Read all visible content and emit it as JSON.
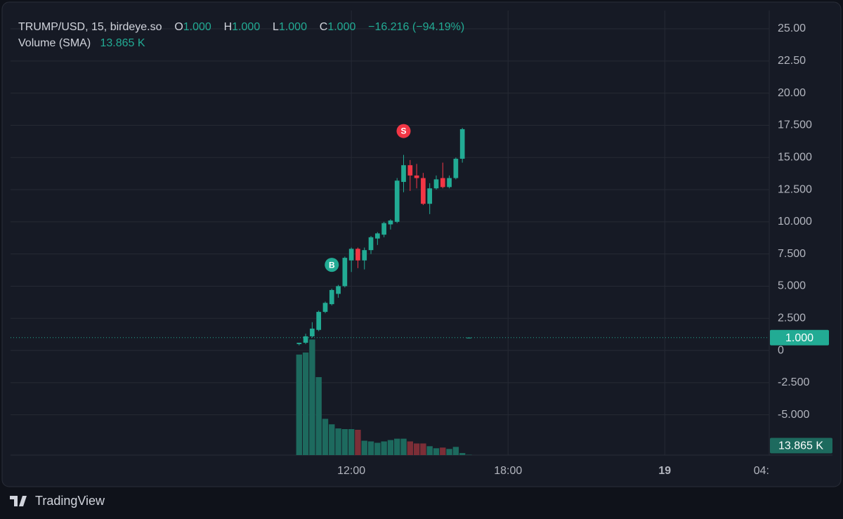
{
  "brand": "TradingView",
  "chart_data": {
    "type": "candlestick",
    "title": "TRUMP/USD, 15, birdeye.so",
    "ohlc": [
      {
        "name": "O",
        "value": {
          "value": 1,
          "label": "1.000"
        }
      },
      {
        "name": "H",
        "value": {
          "value": 1,
          "label": "1.000"
        }
      },
      {
        "name": "L",
        "value": {
          "value": 1,
          "label": "1.000"
        }
      },
      {
        "name": "C",
        "value": {
          "value": 1,
          "label": "1.000"
        }
      }
    ],
    "change": "−16.216 (−94.19%)",
    "x": [
      0,
      1,
      2,
      3,
      4,
      5,
      6,
      7,
      8,
      9,
      10,
      11,
      12,
      13,
      14,
      15,
      16,
      17,
      18,
      19,
      20,
      21,
      22,
      23,
      24,
      25,
      26
    ],
    "open": [
      0.5,
      0.6,
      1.1,
      1.6,
      3.0,
      3.6,
      4.4,
      5.0,
      7.0,
      7.9,
      7.0,
      7.8,
      8.7,
      9.0,
      9.8,
      10.0,
      13.1,
      14.4,
      13.6,
      13.4,
      11.4,
      12.6,
      13.4,
      12.7,
      13.4,
      14.9,
      1.0
    ],
    "high": [
      0.6,
      1.3,
      2.2,
      3.1,
      3.8,
      4.8,
      5.1,
      7.3,
      8.0,
      8.0,
      8.0,
      8.9,
      9.2,
      10.0,
      10.2,
      13.4,
      15.2,
      14.8,
      14.5,
      13.8,
      13.0,
      13.6,
      14.6,
      13.6,
      15.0,
      17.3,
      1.0
    ],
    "low": [
      0.4,
      0.5,
      1.0,
      1.5,
      2.9,
      3.5,
      4.1,
      4.9,
      6.1,
      6.4,
      6.3,
      7.5,
      8.2,
      8.8,
      9.4,
      9.9,
      12.3,
      12.4,
      12.6,
      11.3,
      10.6,
      12.5,
      12.6,
      12.6,
      13.3,
      14.6,
      1.0
    ],
    "close": [
      0.6,
      1.1,
      1.7,
      3.0,
      3.7,
      4.7,
      5.0,
      7.2,
      7.9,
      7.0,
      7.8,
      8.8,
      9.1,
      9.9,
      10.1,
      13.2,
      14.4,
      13.6,
      13.4,
      11.4,
      12.6,
      13.3,
      12.7,
      13.4,
      14.9,
      17.2,
      1.0
    ],
    "color_up": "#22ab94",
    "color_down": "#f23645",
    "volume": {
      "name": "Volume (SMA)",
      "axis": "y2",
      "values": [
        147,
        150,
        169,
        114,
        53,
        45,
        39,
        38,
        38,
        37,
        21,
        20,
        18,
        20,
        22,
        24,
        24,
        20,
        17,
        17,
        13,
        10,
        11,
        9,
        12,
        3,
        0.5
      ],
      "color_up": "#1d6a5e",
      "color_down": "#7c2e37"
    },
    "markers": [
      {
        "label": "B",
        "x": 5,
        "color": "#22ab94"
      },
      {
        "label": "S",
        "x": 16,
        "color": "#f23645"
      }
    ],
    "last_price": {
      "value": 1,
      "label": "1.000"
    },
    "last_volume": {
      "value": 13.865,
      "label": "13.865 K"
    },
    "xlim": [
      -44.2,
      72
    ],
    "xticks": [
      {
        "value": 8,
        "label": "12:00"
      },
      {
        "value": 32,
        "label": "18:00"
      },
      {
        "value": 56,
        "label": "19"
      },
      {
        "value": 72,
        "label": "04:"
      }
    ],
    "ylim": [
      -8.13,
      26.42
    ],
    "yticks": [
      {
        "value": 25,
        "label": "25.00"
      },
      {
        "value": 22.5,
        "label": "22.50"
      },
      {
        "value": 20,
        "label": "20.00"
      },
      {
        "value": 17.5,
        "label": "17.500"
      },
      {
        "value": 15,
        "label": "15.000"
      },
      {
        "value": 12.5,
        "label": "12.500"
      },
      {
        "value": 10,
        "label": "10.000"
      },
      {
        "value": 7.5,
        "label": "7.500"
      },
      {
        "value": 5,
        "label": "5.000"
      },
      {
        "value": 2.5,
        "label": "2.500"
      },
      0,
      {
        "value": -2.5,
        "label": "-2.500"
      },
      {
        "value": -5,
        "label": "-5.000"
      }
    ],
    "y2lim": [
      0,
      650
    ],
    "grid": true
  }
}
